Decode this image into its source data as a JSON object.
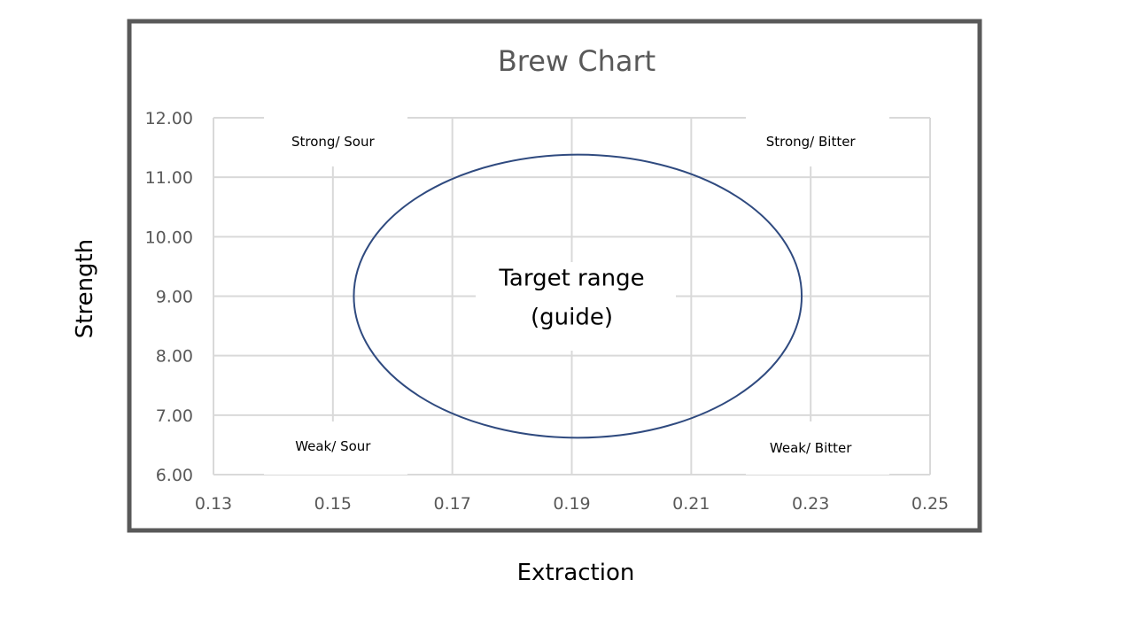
{
  "chart_data": {
    "type": "scatter",
    "title": "Brew Chart",
    "xlabel": "Extraction",
    "ylabel": "Strength",
    "xlim": [
      0.13,
      0.25
    ],
    "ylim": [
      6.0,
      12.0
    ],
    "x_ticks": [
      "0.13",
      "0.15",
      "0.17",
      "0.19",
      "0.21",
      "0.23",
      "0.25"
    ],
    "y_ticks": [
      "6.00",
      "7.00",
      "8.00",
      "9.00",
      "10.00",
      "11.00",
      "12.00"
    ],
    "grid": true,
    "legend": "none",
    "series": [],
    "shapes": [
      {
        "type": "ellipse",
        "center_x": 0.19,
        "center_y": 9.0,
        "x_min": 0.1535,
        "x_max": 0.2285,
        "y_min": 6.62,
        "y_max": 11.38,
        "color": "#2f4a7f"
      }
    ],
    "annotations": [
      {
        "text": "Strong/ Sour",
        "x": 0.15,
        "y": 11.6
      },
      {
        "text": "Strong/ Bitter",
        "x": 0.23,
        "y": 11.6
      },
      {
        "text": "Weak/ Sour",
        "x": 0.15,
        "y": 6.48
      },
      {
        "text": "Weak/ Bitter",
        "x": 0.23,
        "y": 6.45
      }
    ],
    "center_label": [
      "Target range",
      "(guide)"
    ]
  },
  "colors": {
    "frame": "#595959",
    "grid": "#d9d9d9",
    "ellipse": "#2f4a7f"
  }
}
